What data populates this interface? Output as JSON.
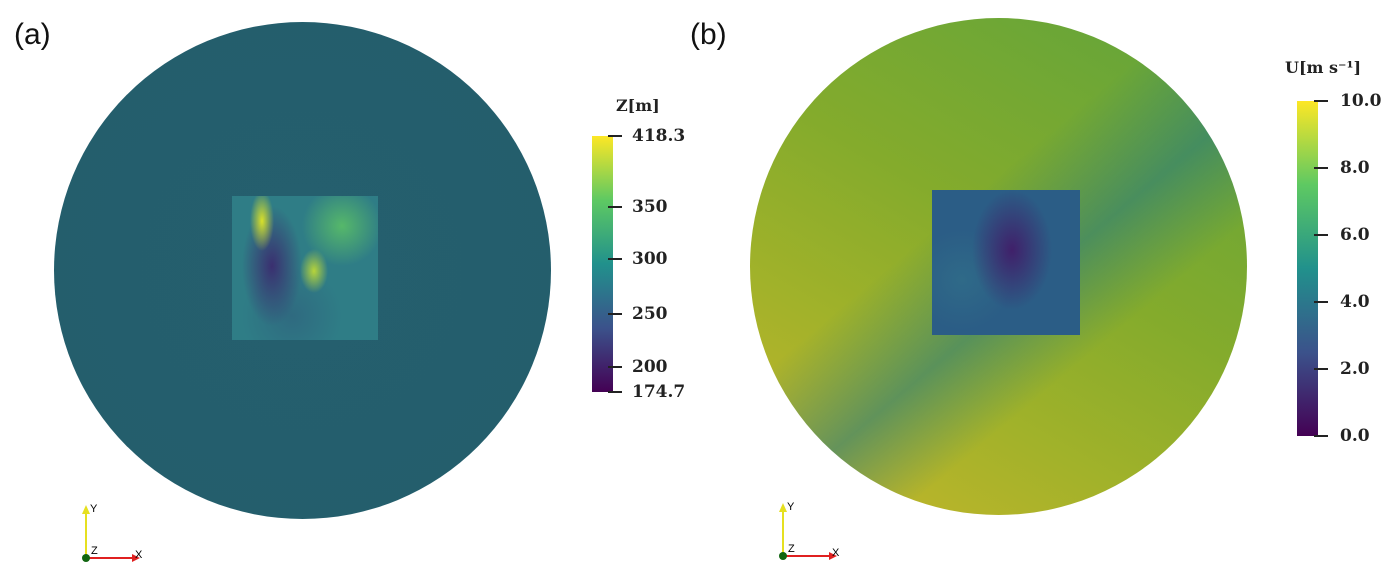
{
  "panels": [
    {
      "label": "(a)",
      "colorbar": {
        "title": "Z[m]",
        "ticks": [
          "418.3",
          "350",
          "300",
          "250",
          "200",
          "174.7"
        ],
        "range": [
          174.7,
          418.3
        ],
        "colormap": "viridis"
      }
    },
    {
      "label": "(b)",
      "colorbar": {
        "title": "U[m s⁻¹]",
        "ticks": [
          "10.0",
          "8.0",
          "6.0",
          "4.0",
          "2.0",
          "0.0"
        ],
        "range": [
          0.0,
          10.0
        ],
        "colormap": "viridis"
      }
    }
  ],
  "axes": {
    "x": "X",
    "y": "Y",
    "z": "Z"
  },
  "colors": {
    "disk_a": "#245f6c",
    "disk_b": "#86ad2a",
    "x_axis": "#e02020",
    "y_axis": "#e6e020",
    "origin": "#116611"
  }
}
